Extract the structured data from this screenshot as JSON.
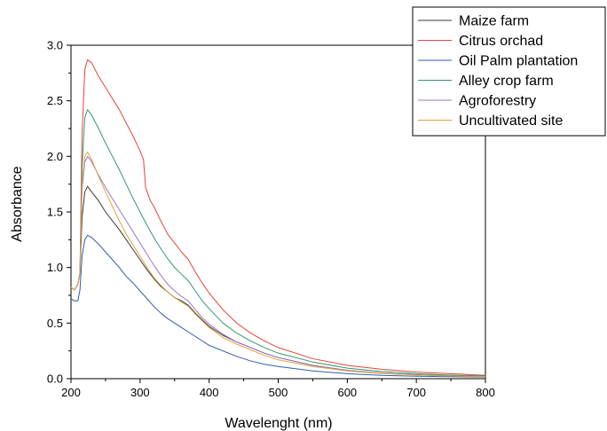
{
  "chart_data": {
    "type": "line",
    "xlabel": "Wavelenght (nm)",
    "ylabel": "Absorbance",
    "xlim": [
      200,
      800
    ],
    "ylim": [
      0.0,
      3.0
    ],
    "xticks": [
      "200",
      "300",
      "400",
      "500",
      "600",
      "700",
      "800"
    ],
    "yticks": [
      "0.0",
      "0.5",
      "1.0",
      "1.5",
      "2.0",
      "2.5",
      "3.0"
    ],
    "grid": false,
    "legend_position": "top-right",
    "series": [
      {
        "name": "Maize farm",
        "color": "#3a3a3a",
        "points": [
          [
            200,
            0.82
          ],
          [
            205,
            0.8
          ],
          [
            210,
            0.85
          ],
          [
            213,
            0.95
          ],
          [
            216,
            1.45
          ],
          [
            220,
            1.68
          ],
          [
            224,
            1.73
          ],
          [
            230,
            1.68
          ],
          [
            240,
            1.6
          ],
          [
            250,
            1.5
          ],
          [
            260,
            1.42
          ],
          [
            270,
            1.34
          ],
          [
            280,
            1.25
          ],
          [
            290,
            1.16
          ],
          [
            300,
            1.07
          ],
          [
            310,
            0.98
          ],
          [
            320,
            0.9
          ],
          [
            330,
            0.83
          ],
          [
            340,
            0.78
          ],
          [
            350,
            0.73
          ],
          [
            360,
            0.7
          ],
          [
            370,
            0.66
          ],
          [
            380,
            0.59
          ],
          [
            390,
            0.53
          ],
          [
            400,
            0.47
          ],
          [
            420,
            0.39
          ],
          [
            440,
            0.33
          ],
          [
            460,
            0.28
          ],
          [
            480,
            0.23
          ],
          [
            500,
            0.19
          ],
          [
            550,
            0.12
          ],
          [
            600,
            0.075
          ],
          [
            650,
            0.05
          ],
          [
            700,
            0.035
          ],
          [
            750,
            0.025
          ],
          [
            800,
            0.02
          ]
        ]
      },
      {
        "name": "Citrus orchad",
        "color": "#e8433a",
        "points": [
          [
            200,
            0.82
          ],
          [
            205,
            0.8
          ],
          [
            210,
            0.85
          ],
          [
            213,
            0.95
          ],
          [
            216,
            2.2
          ],
          [
            220,
            2.78
          ],
          [
            224,
            2.87
          ],
          [
            230,
            2.84
          ],
          [
            240,
            2.72
          ],
          [
            250,
            2.62
          ],
          [
            260,
            2.52
          ],
          [
            270,
            2.42
          ],
          [
            280,
            2.3
          ],
          [
            290,
            2.18
          ],
          [
            300,
            2.05
          ],
          [
            305,
            1.97
          ],
          [
            308,
            1.72
          ],
          [
            315,
            1.6
          ],
          [
            320,
            1.55
          ],
          [
            330,
            1.42
          ],
          [
            340,
            1.3
          ],
          [
            350,
            1.22
          ],
          [
            360,
            1.14
          ],
          [
            370,
            1.07
          ],
          [
            380,
            0.96
          ],
          [
            390,
            0.86
          ],
          [
            400,
            0.77
          ],
          [
            420,
            0.62
          ],
          [
            440,
            0.5
          ],
          [
            460,
            0.41
          ],
          [
            480,
            0.34
          ],
          [
            500,
            0.28
          ],
          [
            550,
            0.18
          ],
          [
            600,
            0.12
          ],
          [
            650,
            0.085
          ],
          [
            700,
            0.06
          ],
          [
            750,
            0.045
          ],
          [
            800,
            0.03
          ]
        ]
      },
      {
        "name": "Oil Palm plantation",
        "color": "#2f5fae",
        "points": [
          [
            200,
            0.72
          ],
          [
            205,
            0.7
          ],
          [
            210,
            0.7
          ],
          [
            213,
            0.8
          ],
          [
            216,
            1.1
          ],
          [
            220,
            1.25
          ],
          [
            224,
            1.29
          ],
          [
            230,
            1.27
          ],
          [
            240,
            1.21
          ],
          [
            250,
            1.14
          ],
          [
            260,
            1.07
          ],
          [
            270,
            1.0
          ],
          [
            280,
            0.92
          ],
          [
            290,
            0.86
          ],
          [
            300,
            0.79
          ],
          [
            310,
            0.72
          ],
          [
            320,
            0.65
          ],
          [
            330,
            0.59
          ],
          [
            340,
            0.54
          ],
          [
            350,
            0.5
          ],
          [
            360,
            0.46
          ],
          [
            370,
            0.42
          ],
          [
            380,
            0.38
          ],
          [
            390,
            0.34
          ],
          [
            400,
            0.3
          ],
          [
            420,
            0.25
          ],
          [
            440,
            0.2
          ],
          [
            460,
            0.16
          ],
          [
            480,
            0.13
          ],
          [
            500,
            0.11
          ],
          [
            550,
            0.07
          ],
          [
            600,
            0.045
          ],
          [
            650,
            0.03
          ],
          [
            700,
            0.022
          ],
          [
            750,
            0.018
          ],
          [
            800,
            0.015
          ]
        ]
      },
      {
        "name": "Alley crop farm",
        "color": "#2f9a6a",
        "points": [
          [
            200,
            0.82
          ],
          [
            205,
            0.8
          ],
          [
            210,
            0.85
          ],
          [
            213,
            0.95
          ],
          [
            216,
            1.9
          ],
          [
            220,
            2.35
          ],
          [
            224,
            2.42
          ],
          [
            230,
            2.37
          ],
          [
            240,
            2.25
          ],
          [
            250,
            2.12
          ],
          [
            260,
            2.0
          ],
          [
            270,
            1.88
          ],
          [
            280,
            1.75
          ],
          [
            290,
            1.62
          ],
          [
            300,
            1.5
          ],
          [
            310,
            1.38
          ],
          [
            320,
            1.27
          ],
          [
            330,
            1.17
          ],
          [
            340,
            1.08
          ],
          [
            350,
            1.0
          ],
          [
            360,
            0.94
          ],
          [
            370,
            0.88
          ],
          [
            380,
            0.79
          ],
          [
            390,
            0.7
          ],
          [
            400,
            0.63
          ],
          [
            420,
            0.5
          ],
          [
            440,
            0.41
          ],
          [
            460,
            0.34
          ],
          [
            480,
            0.28
          ],
          [
            500,
            0.23
          ],
          [
            550,
            0.15
          ],
          [
            600,
            0.095
          ],
          [
            650,
            0.065
          ],
          [
            700,
            0.045
          ],
          [
            750,
            0.032
          ],
          [
            800,
            0.025
          ]
        ]
      },
      {
        "name": "Agroforestry",
        "color": "#a176c7",
        "points": [
          [
            200,
            0.82
          ],
          [
            205,
            0.8
          ],
          [
            210,
            0.85
          ],
          [
            213,
            0.95
          ],
          [
            216,
            1.7
          ],
          [
            220,
            1.95
          ],
          [
            224,
            2.0
          ],
          [
            230,
            1.95
          ],
          [
            240,
            1.83
          ],
          [
            250,
            1.72
          ],
          [
            260,
            1.62
          ],
          [
            270,
            1.52
          ],
          [
            280,
            1.42
          ],
          [
            290,
            1.32
          ],
          [
            300,
            1.22
          ],
          [
            310,
            1.12
          ],
          [
            320,
            1.02
          ],
          [
            330,
            0.93
          ],
          [
            340,
            0.85
          ],
          [
            350,
            0.79
          ],
          [
            360,
            0.74
          ],
          [
            370,
            0.7
          ],
          [
            380,
            0.62
          ],
          [
            390,
            0.55
          ],
          [
            400,
            0.49
          ],
          [
            420,
            0.4
          ],
          [
            440,
            0.33
          ],
          [
            460,
            0.28
          ],
          [
            480,
            0.23
          ],
          [
            500,
            0.19
          ],
          [
            550,
            0.12
          ],
          [
            600,
            0.075
          ],
          [
            650,
            0.05
          ],
          [
            700,
            0.035
          ],
          [
            750,
            0.025
          ],
          [
            800,
            0.02
          ]
        ]
      },
      {
        "name": "Uncultivated site",
        "color": "#e0a13c",
        "points": [
          [
            200,
            0.82
          ],
          [
            205,
            0.8
          ],
          [
            210,
            0.85
          ],
          [
            213,
            0.95
          ],
          [
            216,
            1.75
          ],
          [
            220,
            2.0
          ],
          [
            224,
            2.04
          ],
          [
            230,
            1.97
          ],
          [
            240,
            1.82
          ],
          [
            250,
            1.68
          ],
          [
            260,
            1.55
          ],
          [
            270,
            1.42
          ],
          [
            280,
            1.3
          ],
          [
            290,
            1.2
          ],
          [
            300,
            1.1
          ],
          [
            310,
            1.0
          ],
          [
            320,
            0.91
          ],
          [
            330,
            0.84
          ],
          [
            340,
            0.78
          ],
          [
            350,
            0.73
          ],
          [
            360,
            0.69
          ],
          [
            370,
            0.65
          ],
          [
            380,
            0.58
          ],
          [
            390,
            0.52
          ],
          [
            400,
            0.46
          ],
          [
            420,
            0.37
          ],
          [
            440,
            0.31
          ],
          [
            460,
            0.26
          ],
          [
            480,
            0.21
          ],
          [
            500,
            0.17
          ],
          [
            550,
            0.11
          ],
          [
            600,
            0.07
          ],
          [
            650,
            0.047
          ],
          [
            700,
            0.033
          ],
          [
            750,
            0.024
          ],
          [
            800,
            0.018
          ]
        ]
      }
    ]
  }
}
